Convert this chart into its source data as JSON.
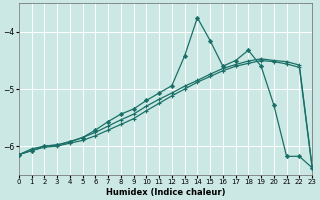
{
  "xlabel": "Humidex (Indice chaleur)",
  "bg_color": "#cce8e4",
  "grid_color": "#ffffff",
  "line_color": "#1a7068",
  "xlim": [
    0,
    23
  ],
  "ylim": [
    -6.5,
    -3.5
  ],
  "yticks": [
    -6,
    -5,
    -4
  ],
  "xticks": [
    0,
    1,
    2,
    3,
    4,
    5,
    6,
    7,
    8,
    9,
    10,
    11,
    12,
    13,
    14,
    15,
    16,
    17,
    18,
    19,
    20,
    21,
    22,
    23
  ],
  "line1_x": [
    0,
    1,
    2,
    3,
    4,
    5,
    6,
    7,
    8,
    9,
    10,
    11,
    12,
    13,
    14,
    15,
    16,
    17,
    18,
    19,
    20,
    21,
    22,
    23
  ],
  "line1_y": [
    -6.15,
    -6.05,
    -6.0,
    -5.98,
    -5.92,
    -5.85,
    -5.76,
    -5.65,
    -5.54,
    -5.44,
    -5.3,
    -5.18,
    -5.07,
    -4.95,
    -4.85,
    -4.74,
    -4.64,
    -4.57,
    -4.51,
    -4.47,
    -4.5,
    -4.52,
    -4.58,
    -6.35
  ],
  "line2_x": [
    0,
    1,
    2,
    3,
    4,
    5,
    6,
    7,
    8,
    9,
    10,
    11,
    12,
    13,
    14,
    15,
    16,
    17,
    18,
    19,
    20,
    21,
    22,
    23
  ],
  "line2_y": [
    -6.15,
    -6.08,
    -6.0,
    -5.98,
    -5.93,
    -5.85,
    -5.72,
    -5.57,
    -5.44,
    -5.35,
    -5.2,
    -5.07,
    -4.94,
    -4.42,
    -3.75,
    -4.15,
    -4.6,
    -4.5,
    -4.32,
    -4.6,
    -5.28,
    -6.18,
    -6.18,
    -6.38
  ],
  "line3_x": [
    0,
    1,
    2,
    3,
    4,
    5,
    6,
    7,
    8,
    9,
    10,
    11,
    12,
    13,
    14,
    15,
    16,
    17,
    18,
    19,
    20,
    21,
    22,
    23
  ],
  "line3_y": [
    -6.15,
    -6.08,
    -6.02,
    -6.0,
    -5.95,
    -5.9,
    -5.82,
    -5.72,
    -5.62,
    -5.52,
    -5.38,
    -5.25,
    -5.12,
    -5.0,
    -4.88,
    -4.78,
    -4.68,
    -4.6,
    -4.55,
    -4.5,
    -4.52,
    -4.56,
    -4.62,
    -6.38
  ]
}
